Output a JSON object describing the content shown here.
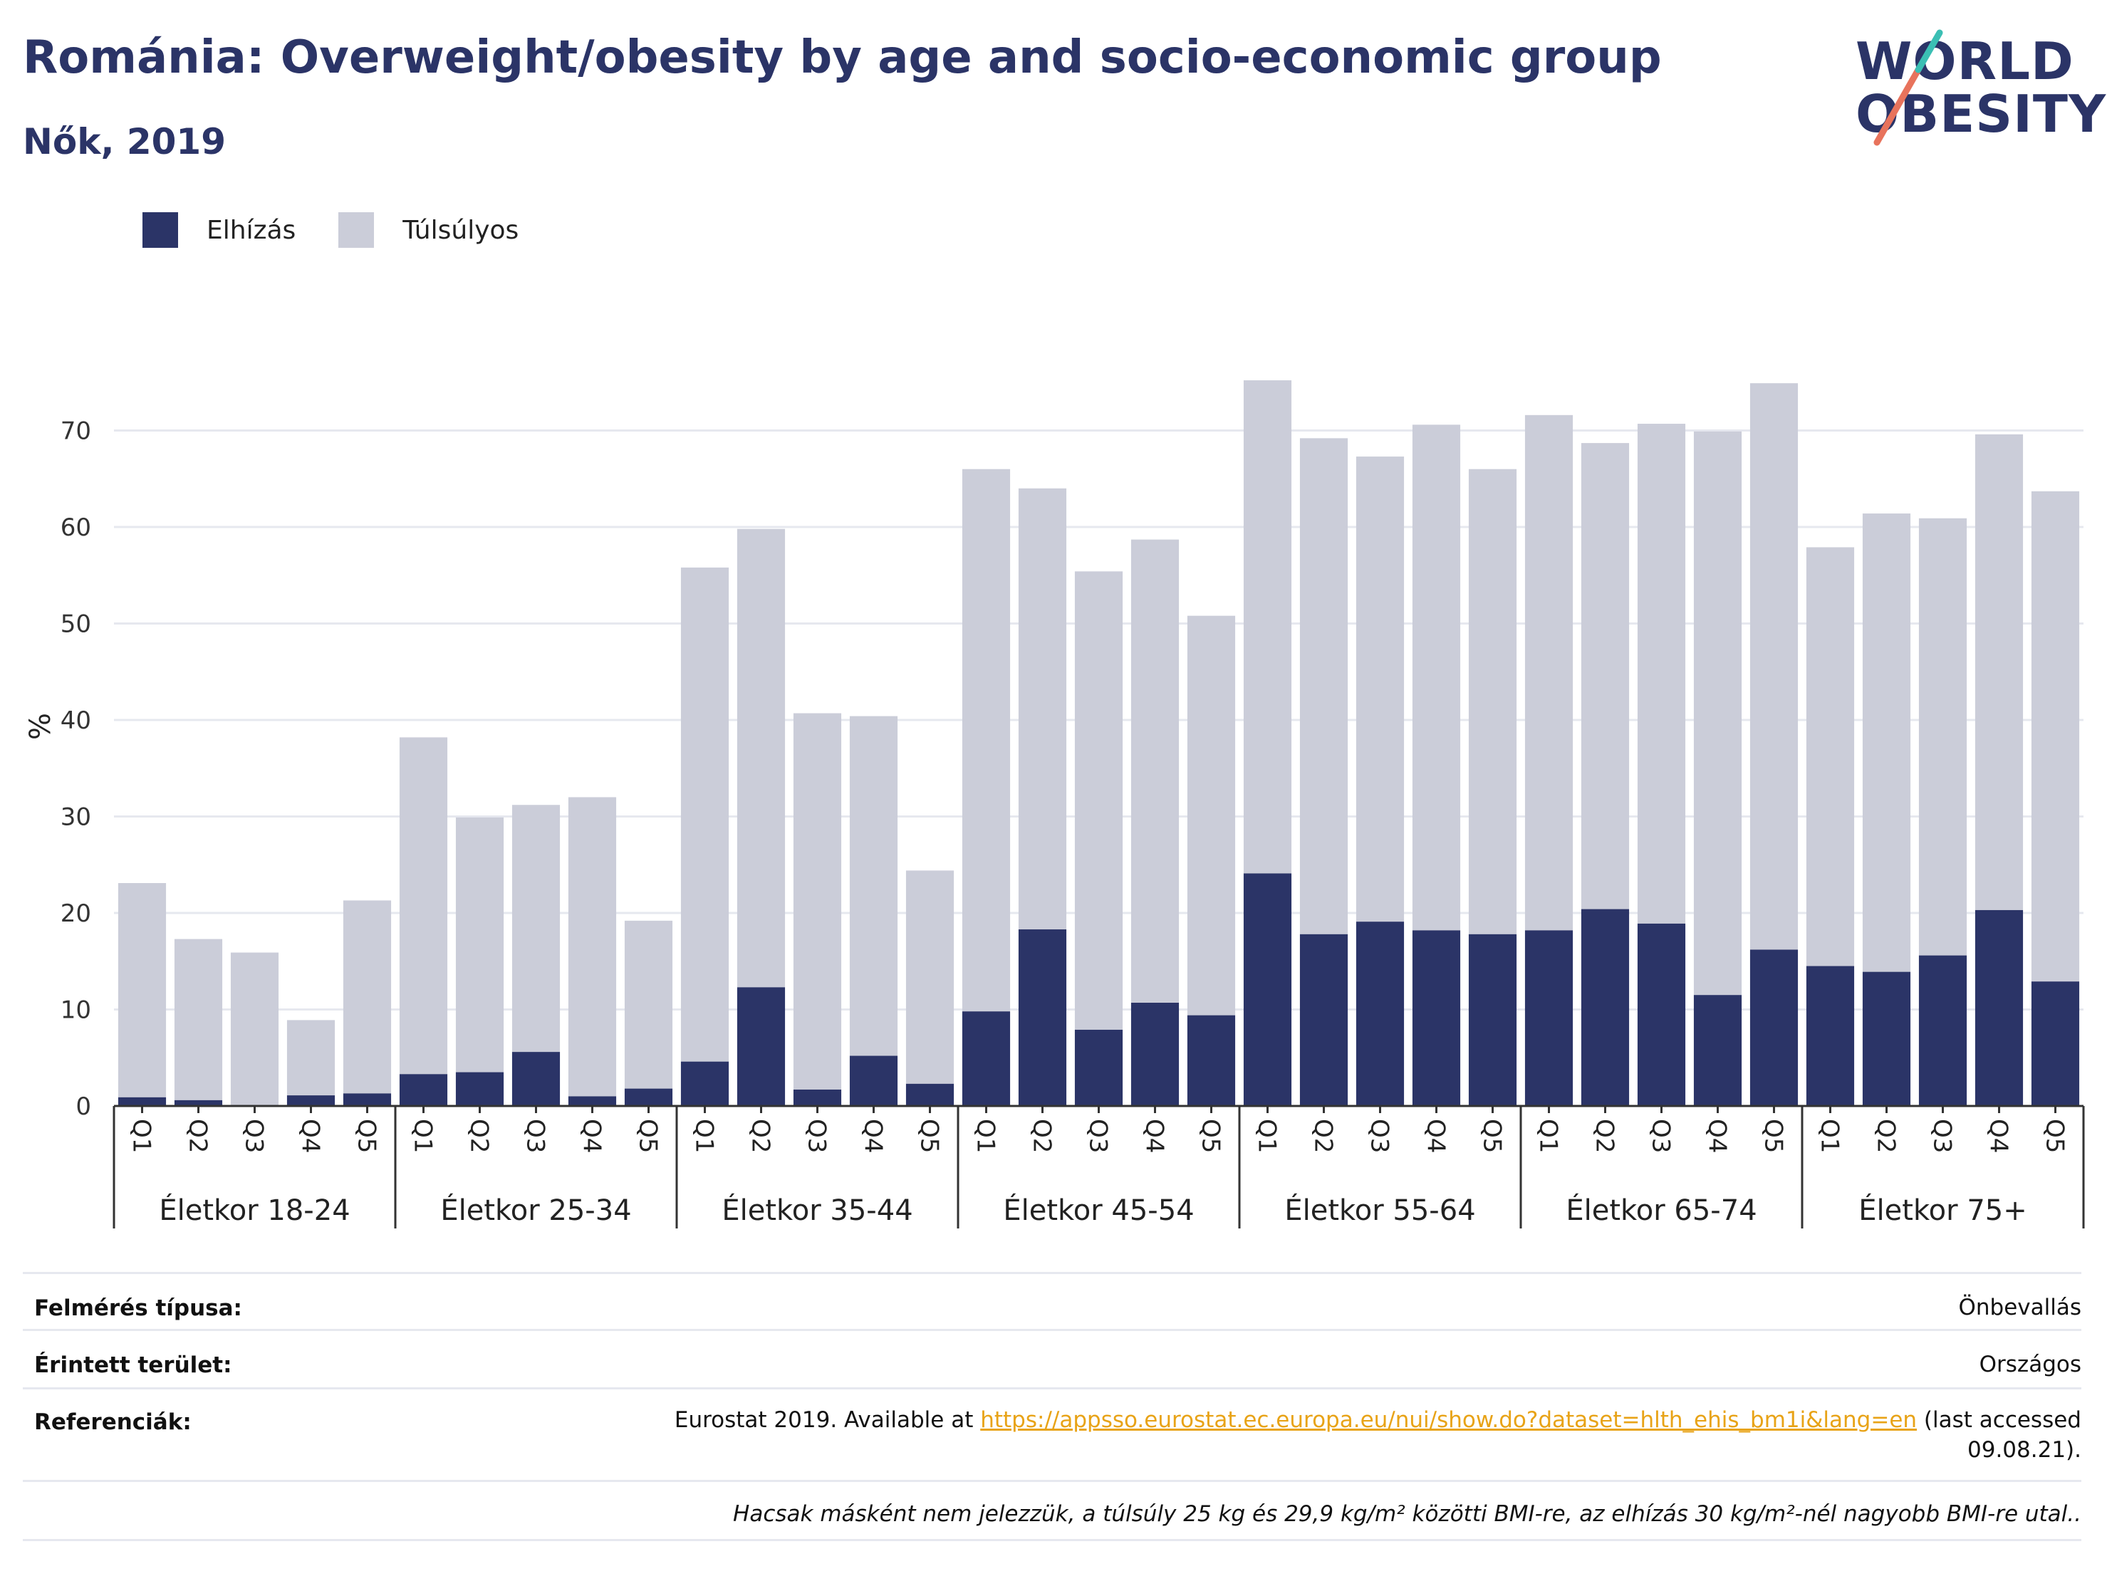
{
  "header": {
    "title": "Románia: Overweight/obesity by age and socio-economic group",
    "subtitle": "Nők, 2019"
  },
  "logo": {
    "line1": "WORLD",
    "line2": "OBESITY",
    "accent_teal": "#3bbfb4",
    "accent_coral": "#e8735c"
  },
  "colors": {
    "obese": "#2b3467",
    "overweight": "#cbcdd9",
    "grid": "#e6e8ef",
    "axis": "#333333"
  },
  "chart_data": {
    "type": "bar",
    "stacked": true,
    "ylabel": "%",
    "ylim": [
      0,
      80
    ],
    "yticks": [
      0,
      10,
      20,
      30,
      40,
      50,
      60,
      70
    ],
    "grid": true,
    "legend_placement": "top-left",
    "groups": [
      "Életkor 18-24",
      "Életkor 25-34",
      "Életkor 35-44",
      "Életkor 45-54",
      "Életkor 55-64",
      "Életkor 65-74",
      "Életkor 75+"
    ],
    "categories": [
      "Q1",
      "Q2",
      "Q3",
      "Q4",
      "Q5"
    ],
    "series": [
      {
        "name": "Elhízás",
        "values": [
          [
            0.9,
            0.6,
            0.0,
            1.1,
            1.3
          ],
          [
            3.3,
            3.5,
            5.6,
            1.0,
            1.8
          ],
          [
            4.6,
            12.3,
            1.7,
            5.2,
            2.3
          ],
          [
            9.8,
            18.3,
            7.9,
            10.7,
            9.4
          ],
          [
            24.1,
            17.8,
            19.1,
            18.2,
            17.8
          ],
          [
            18.2,
            20.4,
            18.9,
            11.5,
            16.2
          ],
          [
            14.5,
            13.9,
            15.6,
            20.3,
            12.9
          ]
        ]
      },
      {
        "name": "Túlsúlyos",
        "values": [
          [
            22.2,
            16.7,
            15.9,
            7.8,
            20.0
          ],
          [
            34.9,
            26.4,
            25.6,
            31.0,
            17.4
          ],
          [
            51.2,
            47.5,
            39.0,
            35.2,
            22.1
          ],
          [
            56.2,
            45.7,
            47.5,
            48.0,
            41.4
          ],
          [
            51.1,
            51.4,
            48.2,
            52.4,
            48.2
          ],
          [
            53.4,
            48.3,
            51.8,
            58.4,
            58.7
          ],
          [
            43.4,
            47.5,
            45.3,
            49.3,
            50.8
          ]
        ]
      }
    ]
  },
  "info": {
    "survey_label": "Felmérés típusa:",
    "survey_value": "Önbevallás",
    "area_label": "Érintett terület:",
    "area_value": "Országos",
    "ref_label": "Referenciák:",
    "ref_prefix": "Eurostat 2019. Available at ",
    "ref_link": "https://appsso.eurostat.ec.europa.eu/nui/show.do?dataset=hlth_ehis_bm1i&lang=en",
    "ref_suffix_1": " (last accessed",
    "ref_suffix_2": "09.08.21).",
    "note": "Hacsak másként nem jelezzük, a túlsúly 25 kg és 29,9 kg/m² közötti BMI-re, az elhízás 30 kg/m²-nél nagyobb BMI-re utal.."
  }
}
